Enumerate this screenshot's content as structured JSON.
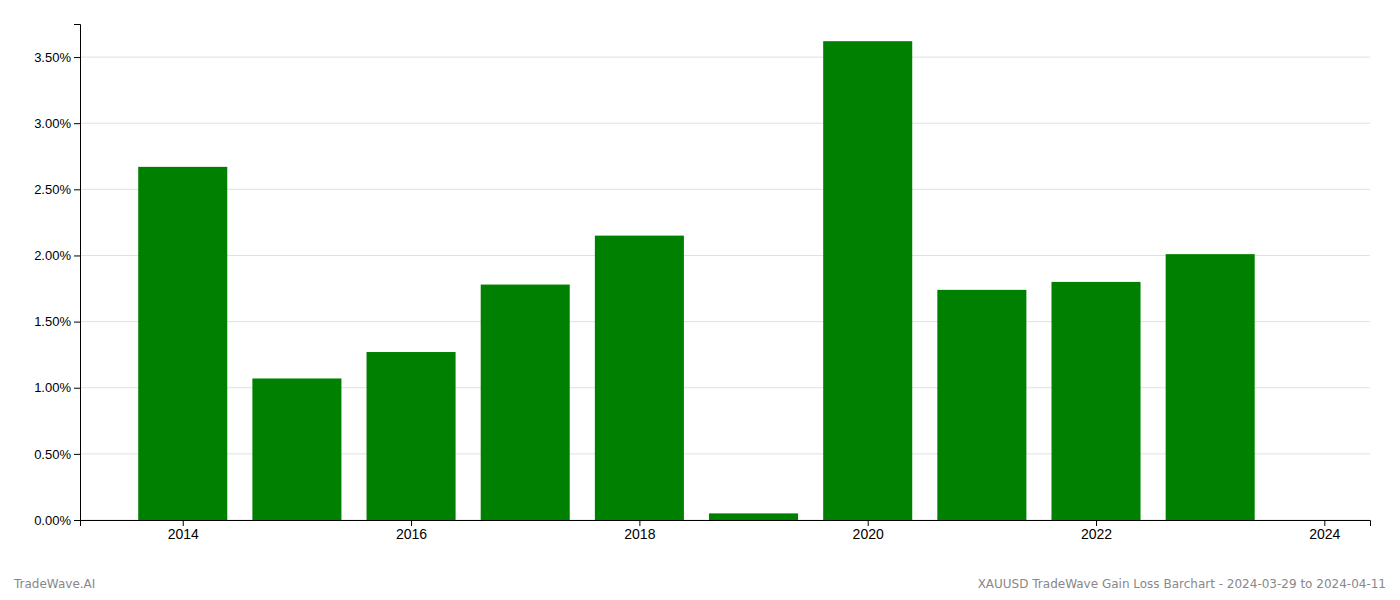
{
  "chart_data": {
    "type": "bar",
    "x": [
      2014,
      2015,
      2016,
      2017,
      2018,
      2019,
      2020,
      2021,
      2022,
      2023
    ],
    "values": [
      0.0267,
      0.0107,
      0.0127,
      0.0178,
      0.0215,
      0.0005,
      0.0362,
      0.0174,
      0.018,
      0.0201
    ],
    "color": "#008000",
    "xlim": [
      2013.1,
      2024.4
    ],
    "xticks": [
      2014,
      2016,
      2018,
      2020,
      2022,
      2024
    ],
    "ylim": [
      0,
      0.0375
    ],
    "yticks": [
      {
        "value": 0.0,
        "label": "0.00%"
      },
      {
        "value": 0.005,
        "label": "0.50%"
      },
      {
        "value": 0.01,
        "label": "1.00%"
      },
      {
        "value": 0.015,
        "label": "1.50%"
      },
      {
        "value": 0.02,
        "label": "2.00%"
      },
      {
        "value": 0.025,
        "label": "2.50%"
      },
      {
        "value": 0.03,
        "label": "3.00%"
      },
      {
        "value": 0.035,
        "label": "3.50%"
      }
    ],
    "grid": true,
    "annotations": [
      "TradeWave.AI",
      "XAUUSD TradeWave Gain Loss Barchart - 2024-03-29 to 2024-04-11"
    ]
  }
}
